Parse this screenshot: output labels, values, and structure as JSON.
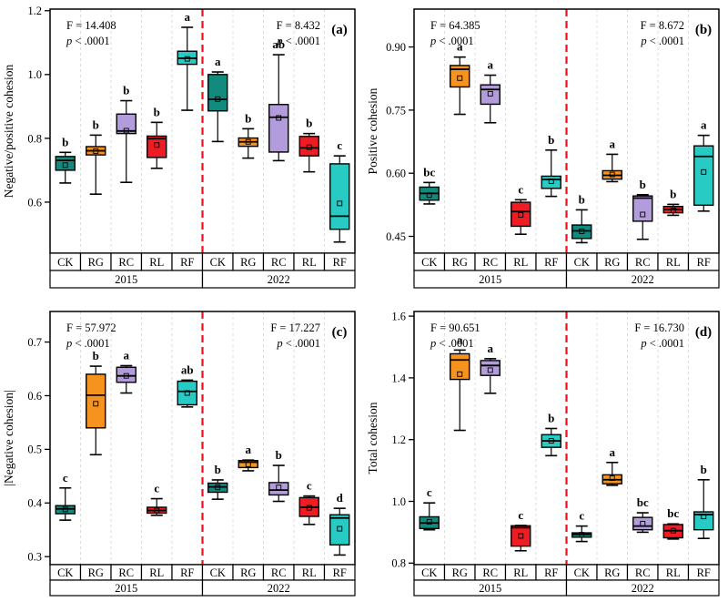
{
  "treatments": [
    "CK",
    "RG",
    "RC",
    "RL",
    "RF"
  ],
  "years": [
    "2015",
    "2022"
  ],
  "colors": {
    "CK": "#128a7e",
    "RG": "#f6921e",
    "RC": "#b39cdb",
    "RL": "#ee1c23",
    "RF": "#27cbc3",
    "grid": "#dcdcdc",
    "divider": "#f30e19",
    "axis": "#000000",
    "background": "#ffffff"
  },
  "chart_data": [
    {
      "type": "boxplot",
      "tag": "(a)",
      "ylabel": "Negative/positive cohesion",
      "ylim": [
        0.44,
        1.205
      ],
      "yticks": [
        0.6,
        0.8,
        1.0,
        1.2
      ],
      "ytick_labels": [
        "0.6",
        "0.8",
        "1.0",
        "1.2"
      ],
      "grid": true,
      "legend_position": "none",
      "stats": {
        "left": {
          "F": "F = 14.408",
          "p": "p < .0001"
        },
        "right": {
          "F": "F = 8.432",
          "p": "p < .0001"
        }
      },
      "groups": [
        {
          "year": "2015",
          "treatment": "CK",
          "letter": "b",
          "low": 0.66,
          "q1": 0.7,
          "median": 0.731,
          "q3": 0.743,
          "high": 0.756,
          "mean": 0.716
        },
        {
          "year": "2015",
          "treatment": "RG",
          "letter": "b",
          "low": 0.625,
          "q1": 0.748,
          "median": 0.761,
          "q3": 0.774,
          "high": 0.81,
          "mean": 0.76
        },
        {
          "year": "2015",
          "treatment": "RC",
          "letter": "b",
          "low": 0.662,
          "q1": 0.815,
          "median": 0.823,
          "q3": 0.876,
          "high": 0.918,
          "mean": 0.824
        },
        {
          "year": "2015",
          "treatment": "RL",
          "letter": "b",
          "low": 0.706,
          "q1": 0.74,
          "median": 0.799,
          "q3": 0.807,
          "high": 0.85,
          "mean": 0.779
        },
        {
          "year": "2015",
          "treatment": "RF",
          "letter": "a",
          "low": 0.888,
          "q1": 1.032,
          "median": 1.051,
          "q3": 1.073,
          "high": 1.148,
          "mean": 1.049
        },
        {
          "year": "2022",
          "treatment": "CK",
          "letter": "a",
          "low": 0.79,
          "q1": 0.886,
          "median": 0.922,
          "q3": 1.0,
          "high": 1.008,
          "mean": 0.923
        },
        {
          "year": "2022",
          "treatment": "RG",
          "letter": "b",
          "low": 0.738,
          "q1": 0.775,
          "median": 0.789,
          "q3": 0.801,
          "high": 0.83,
          "mean": 0.789
        },
        {
          "year": "2022",
          "treatment": "RC",
          "letter": "ab",
          "low": 0.73,
          "q1": 0.757,
          "median": 0.866,
          "q3": 0.906,
          "high": 1.062,
          "mean": 0.864
        },
        {
          "year": "2022",
          "treatment": "RL",
          "letter": "b",
          "low": 0.695,
          "q1": 0.745,
          "median": 0.77,
          "q3": 0.806,
          "high": 0.815,
          "mean": 0.772
        },
        {
          "year": "2022",
          "treatment": "RF",
          "letter": "c",
          "low": 0.475,
          "q1": 0.515,
          "median": 0.556,
          "q3": 0.72,
          "high": 0.745,
          "mean": 0.596
        }
      ]
    },
    {
      "type": "boxplot",
      "tag": "(b)",
      "ylabel": "Positive cohesion",
      "ylim": [
        0.41,
        0.99
      ],
      "yticks": [
        0.45,
        0.6,
        0.75,
        0.9
      ],
      "ytick_labels": [
        "0.45",
        "0.60",
        "0.75",
        "0.90"
      ],
      "grid": true,
      "legend_position": "none",
      "stats": {
        "left": {
          "F": "F = 64.385",
          "p": "p < .0001"
        },
        "right": {
          "F": "F = 8.672",
          "p": "p < .0001"
        }
      },
      "groups": [
        {
          "year": "2015",
          "treatment": "CK",
          "letter": "bc",
          "low": 0.527,
          "q1": 0.536,
          "median": 0.552,
          "q3": 0.567,
          "high": 0.578,
          "mean": 0.548
        },
        {
          "year": "2015",
          "treatment": "RG",
          "letter": "a",
          "low": 0.74,
          "q1": 0.805,
          "median": 0.847,
          "q3": 0.856,
          "high": 0.876,
          "mean": 0.826
        },
        {
          "year": "2015",
          "treatment": "RC",
          "letter": "a",
          "low": 0.72,
          "q1": 0.764,
          "median": 0.799,
          "q3": 0.81,
          "high": 0.833,
          "mean": 0.789
        },
        {
          "year": "2015",
          "treatment": "RL",
          "letter": "c",
          "low": 0.455,
          "q1": 0.474,
          "median": 0.509,
          "q3": 0.531,
          "high": 0.537,
          "mean": 0.501
        },
        {
          "year": "2015",
          "treatment": "RF",
          "letter": "b",
          "low": 0.545,
          "q1": 0.564,
          "median": 0.585,
          "q3": 0.593,
          "high": 0.655,
          "mean": 0.581
        },
        {
          "year": "2022",
          "treatment": "CK",
          "letter": "b",
          "low": 0.435,
          "q1": 0.445,
          "median": 0.463,
          "q3": 0.477,
          "high": 0.513,
          "mean": 0.462
        },
        {
          "year": "2022",
          "treatment": "RG",
          "letter": "a",
          "low": 0.58,
          "q1": 0.586,
          "median": 0.595,
          "q3": 0.606,
          "high": 0.645,
          "mean": 0.597
        },
        {
          "year": "2022",
          "treatment": "RC",
          "letter": "b",
          "low": 0.443,
          "q1": 0.486,
          "median": 0.541,
          "q3": 0.546,
          "high": 0.549,
          "mean": 0.502
        },
        {
          "year": "2022",
          "treatment": "RL",
          "letter": "b",
          "low": 0.5,
          "q1": 0.506,
          "median": 0.514,
          "q3": 0.521,
          "high": 0.526,
          "mean": 0.512
        },
        {
          "year": "2022",
          "treatment": "RF",
          "letter": "a",
          "low": 0.51,
          "q1": 0.524,
          "median": 0.64,
          "q3": 0.665,
          "high": 0.69,
          "mean": 0.603
        }
      ]
    },
    {
      "type": "boxplot",
      "tag": "(c)",
      "ylabel": "|Negative cohesion|",
      "ylim": [
        0.285,
        0.757
      ],
      "yticks": [
        0.3,
        0.4,
        0.5,
        0.6,
        0.7
      ],
      "ytick_labels": [
        "0.3",
        "0.4",
        "0.5",
        "0.6",
        "0.7"
      ],
      "grid": true,
      "legend_position": "none",
      "stats": {
        "left": {
          "F": "F = 57.972",
          "p": "p < .0001"
        },
        "right": {
          "F": "F = 17.227",
          "p": "p < .0001"
        }
      },
      "groups": [
        {
          "year": "2015",
          "treatment": "CK",
          "letter": "c",
          "low": 0.368,
          "q1": 0.38,
          "median": 0.389,
          "q3": 0.395,
          "high": 0.428,
          "mean": 0.388
        },
        {
          "year": "2015",
          "treatment": "RG",
          "letter": "b",
          "low": 0.49,
          "q1": 0.54,
          "median": 0.601,
          "q3": 0.64,
          "high": 0.655,
          "mean": 0.585
        },
        {
          "year": "2015",
          "treatment": "RC",
          "letter": "a",
          "low": 0.605,
          "q1": 0.625,
          "median": 0.637,
          "q3": 0.653,
          "high": 0.656,
          "mean": 0.637
        },
        {
          "year": "2015",
          "treatment": "RL",
          "letter": "c",
          "low": 0.377,
          "q1": 0.381,
          "median": 0.386,
          "q3": 0.392,
          "high": 0.408,
          "mean": 0.386
        },
        {
          "year": "2015",
          "treatment": "RF",
          "letter": "ab",
          "low": 0.579,
          "q1": 0.583,
          "median": 0.608,
          "q3": 0.627,
          "high": 0.629,
          "mean": 0.605
        },
        {
          "year": "2022",
          "treatment": "CK",
          "letter": "b",
          "low": 0.407,
          "q1": 0.42,
          "median": 0.43,
          "q3": 0.437,
          "high": 0.443,
          "mean": 0.429
        },
        {
          "year": "2022",
          "treatment": "RG",
          "letter": "a",
          "low": 0.46,
          "q1": 0.466,
          "median": 0.476,
          "q3": 0.479,
          "high": 0.48,
          "mean": 0.472
        },
        {
          "year": "2022",
          "treatment": "RC",
          "letter": "b",
          "low": 0.403,
          "q1": 0.415,
          "median": 0.424,
          "q3": 0.438,
          "high": 0.47,
          "mean": 0.429
        },
        {
          "year": "2022",
          "treatment": "RL",
          "letter": "c",
          "low": 0.36,
          "q1": 0.375,
          "median": 0.392,
          "q3": 0.41,
          "high": 0.413,
          "mean": 0.391
        },
        {
          "year": "2022",
          "treatment": "RF",
          "letter": "d",
          "low": 0.303,
          "q1": 0.322,
          "median": 0.372,
          "q3": 0.378,
          "high": 0.39,
          "mean": 0.352
        }
      ]
    },
    {
      "type": "boxplot",
      "tag": "(d)",
      "ylabel": "Total cohesion",
      "ylim": [
        0.795,
        1.615
      ],
      "yticks": [
        0.8,
        1.0,
        1.2,
        1.4,
        1.6
      ],
      "ytick_labels": [
        "0.8",
        "1.0",
        "1.2",
        "1.4",
        "1.6"
      ],
      "grid": true,
      "legend_position": "none",
      "stats": {
        "left": {
          "F": "F = 90.651",
          "p": "p < .0001"
        },
        "right": {
          "F": "F = 16.730",
          "p": "p < .0001"
        }
      },
      "groups": [
        {
          "year": "2015",
          "treatment": "CK",
          "letter": "c",
          "low": 0.908,
          "q1": 0.912,
          "median": 0.93,
          "q3": 0.95,
          "high": 0.995,
          "mean": 0.934
        },
        {
          "year": "2015",
          "treatment": "RG",
          "letter": "a",
          "low": 1.23,
          "q1": 1.395,
          "median": 1.458,
          "q3": 1.478,
          "high": 1.49,
          "mean": 1.412
        },
        {
          "year": "2015",
          "treatment": "RC",
          "letter": "a",
          "low": 1.35,
          "q1": 1.408,
          "median": 1.44,
          "q3": 1.456,
          "high": 1.462,
          "mean": 1.425
        },
        {
          "year": "2015",
          "treatment": "RL",
          "letter": "c",
          "low": 0.84,
          "q1": 0.855,
          "median": 0.915,
          "q3": 0.921,
          "high": 0.922,
          "mean": 0.888
        },
        {
          "year": "2015",
          "treatment": "RF",
          "letter": "b",
          "low": 1.148,
          "q1": 1.175,
          "median": 1.196,
          "q3": 1.216,
          "high": 1.236,
          "mean": 1.196
        },
        {
          "year": "2022",
          "treatment": "CK",
          "letter": "c",
          "low": 0.87,
          "q1": 0.884,
          "median": 0.893,
          "q3": 0.898,
          "high": 0.92,
          "mean": 0.892
        },
        {
          "year": "2022",
          "treatment": "RG",
          "letter": "a",
          "low": 1.052,
          "q1": 1.057,
          "median": 1.07,
          "q3": 1.086,
          "high": 1.126,
          "mean": 1.075
        },
        {
          "year": "2022",
          "treatment": "RC",
          "letter": "bc",
          "low": 0.9,
          "q1": 0.908,
          "median": 0.92,
          "q3": 0.948,
          "high": 0.963,
          "mean": 0.928
        },
        {
          "year": "2022",
          "treatment": "RL",
          "letter": "bc",
          "low": 0.878,
          "q1": 0.882,
          "median": 0.905,
          "q3": 0.925,
          "high": 0.927,
          "mean": 0.905
        },
        {
          "year": "2022",
          "treatment": "RF",
          "letter": "b",
          "low": 0.88,
          "q1": 0.908,
          "median": 0.957,
          "q3": 0.966,
          "high": 1.07,
          "mean": 0.951
        }
      ]
    }
  ]
}
